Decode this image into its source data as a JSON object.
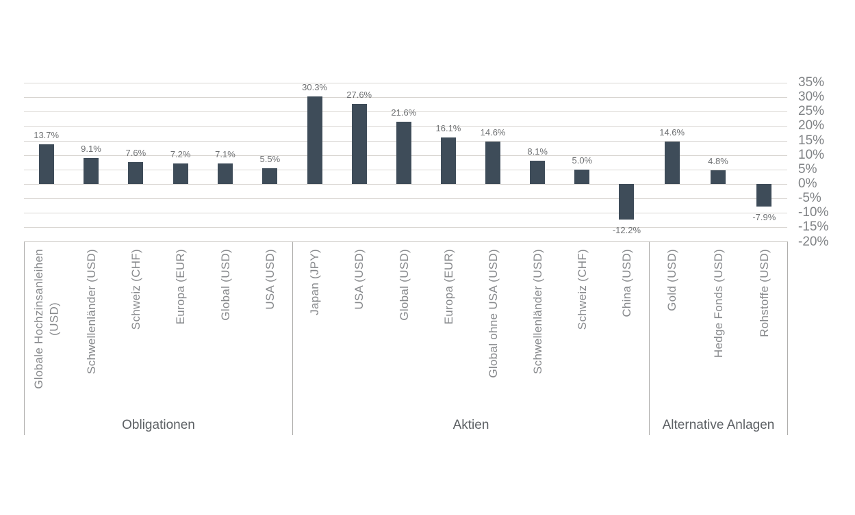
{
  "chart_data": {
    "type": "bar",
    "title": "",
    "value_suffix": "%",
    "ylim": [
      -20,
      35
    ],
    "ytick_step": 5,
    "yticks": [
      "35%",
      "30%",
      "25%",
      "20%",
      "15%",
      "10%",
      "5%",
      "0%",
      "-5%",
      "-10%",
      "-15%",
      "-20%"
    ],
    "grid": "horizontal",
    "legend": "none",
    "groups": [
      {
        "label": "Obligationen",
        "bars": [
          {
            "category": "Globale Hochzinsanleihen\n(USD)",
            "value": 13.7,
            "value_label": "13.7%"
          },
          {
            "category": "Schwellenländer (USD)",
            "value": 9.1,
            "value_label": "9.1%"
          },
          {
            "category": "Schweiz (CHF)",
            "value": 7.6,
            "value_label": "7.6%"
          },
          {
            "category": "Europa (EUR)",
            "value": 7.2,
            "value_label": "7.2%"
          },
          {
            "category": "Global (USD)",
            "value": 7.1,
            "value_label": "7.1%"
          },
          {
            "category": "USA (USD)",
            "value": 5.5,
            "value_label": "5.5%"
          }
        ]
      },
      {
        "label": "Aktien",
        "bars": [
          {
            "category": "Japan (JPY)",
            "value": 30.3,
            "value_label": "30.3%"
          },
          {
            "category": "USA (USD)",
            "value": 27.6,
            "value_label": "27.6%"
          },
          {
            "category": "Global (USD)",
            "value": 21.6,
            "value_label": "21.6%"
          },
          {
            "category": "Europa (EUR)",
            "value": 16.1,
            "value_label": "16.1%"
          },
          {
            "category": "Global ohne USA (USD)",
            "value": 14.6,
            "value_label": "14.6%"
          },
          {
            "category": "Schwellenländer (USD)",
            "value": 8.1,
            "value_label": "8.1%"
          },
          {
            "category": "Schweiz (CHF)",
            "value": 5.0,
            "value_label": "5.0%"
          },
          {
            "category": "China (USD)",
            "value": -12.2,
            "value_label": "-12.2%"
          }
        ]
      },
      {
        "label": "Alternative Anlagen",
        "bars": [
          {
            "category": "Gold (USD)",
            "value": 14.6,
            "value_label": "14.6%"
          },
          {
            "category": "Hedge Fonds (USD)",
            "value": 4.8,
            "value_label": "4.8%"
          },
          {
            "category": "Rohstoffe (USD)",
            "value": -7.9,
            "value_label": "-7.9%"
          }
        ]
      }
    ],
    "colors": {
      "bar": "#3E4C59",
      "gridline": "#D8D5D1",
      "box_border": "#AEADAB",
      "value_label": "#6E7072",
      "category_label": "#87898C",
      "group_label": "#5B5F63",
      "ytick_label": "#7F8285",
      "background": "#FFFFFF"
    }
  }
}
